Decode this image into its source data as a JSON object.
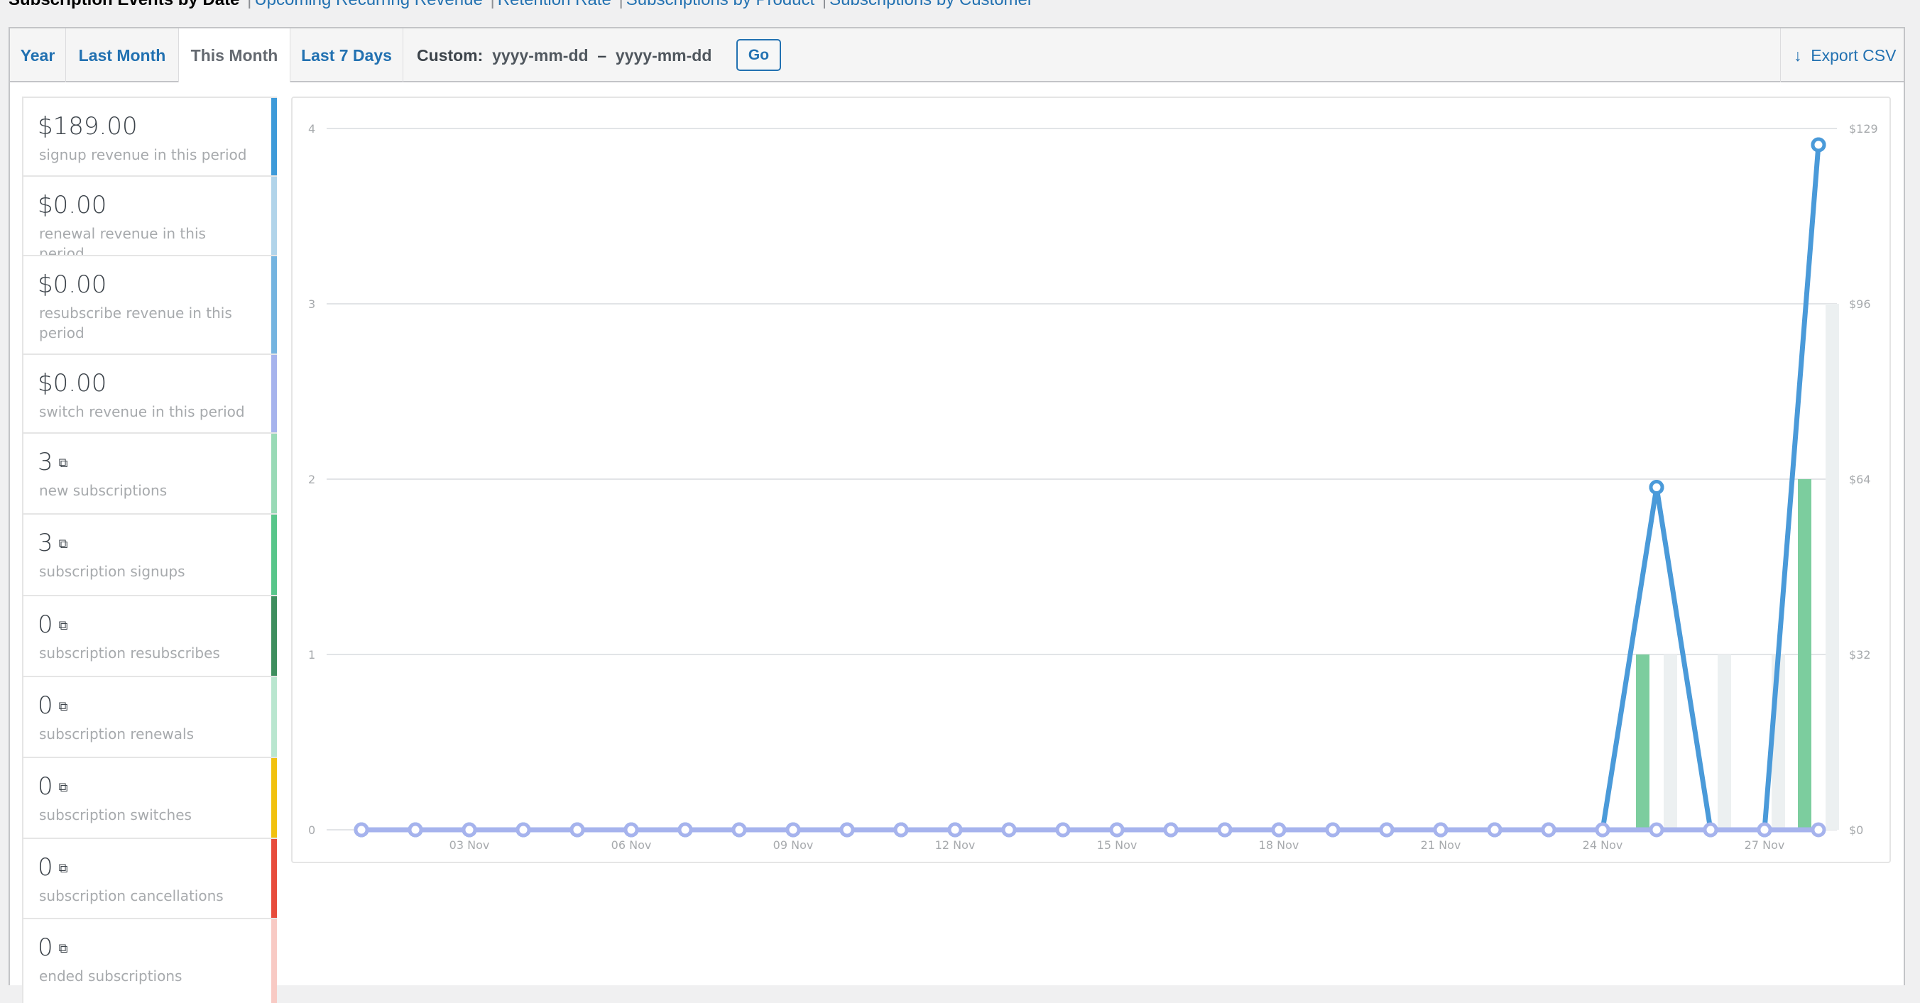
{
  "subnav": {
    "current": "Subscription Events by Date",
    "links": [
      "Upcoming Recurring Revenue",
      "Retention Rate",
      "Subscriptions by Product",
      "Subscriptions by Customer"
    ]
  },
  "tabs": [
    {
      "label": "Year",
      "active": false
    },
    {
      "label": "Last Month",
      "active": false
    },
    {
      "label": "This Month",
      "active": true
    },
    {
      "label": "Last 7 Days",
      "active": false
    }
  ],
  "custom": {
    "label": "Custom:",
    "from_placeholder": "yyyy-mm-dd",
    "dash": "–",
    "to_placeholder": "yyyy-mm-dd",
    "go_label": "Go"
  },
  "export": {
    "icon": "arrow-down-icon",
    "label": "Export CSV"
  },
  "legend": [
    {
      "value": "$189.00",
      "label": "signup revenue in this period",
      "color": "#3d9ad9",
      "link": false
    },
    {
      "value": "$0.00",
      "label": "renewal revenue in this period",
      "color": "#b1d4ea",
      "link": false
    },
    {
      "value": "$0.00",
      "label": "resubscribe revenue in this period",
      "color": "#74b4e0",
      "link": false
    },
    {
      "value": "$0.00",
      "label": "switch revenue in this period",
      "color": "#a6b3ed",
      "link": false
    },
    {
      "value": "3",
      "label": "new subscriptions",
      "color": "#99dab6",
      "link": true
    },
    {
      "value": "3",
      "label": "subscription signups",
      "color": "#58c68a",
      "link": true
    },
    {
      "value": "0",
      "label": "subscription resubscribes",
      "color": "#3e8e5e",
      "link": true
    },
    {
      "value": "0",
      "label": "subscription renewals",
      "color": "#b9e6cf",
      "link": true
    },
    {
      "value": "0",
      "label": "subscription switches",
      "color": "#f1c10f",
      "link": true
    },
    {
      "value": "0",
      "label": "subscription cancellations",
      "color": "#e74c3c",
      "link": true
    },
    {
      "value": "0",
      "label": "ended subscriptions",
      "color": "#f8cac4",
      "link": true
    }
  ],
  "chart_data": {
    "type": "line",
    "x": [
      "01 Nov",
      "02 Nov",
      "03 Nov",
      "04 Nov",
      "05 Nov",
      "06 Nov",
      "07 Nov",
      "08 Nov",
      "09 Nov",
      "10 Nov",
      "11 Nov",
      "12 Nov",
      "13 Nov",
      "14 Nov",
      "15 Nov",
      "16 Nov",
      "17 Nov",
      "18 Nov",
      "19 Nov",
      "20 Nov",
      "21 Nov",
      "22 Nov",
      "23 Nov",
      "24 Nov",
      "25 Nov",
      "26 Nov",
      "27 Nov",
      "28 Nov"
    ],
    "x_tick_labels": [
      "03 Nov",
      "06 Nov",
      "09 Nov",
      "12 Nov",
      "15 Nov",
      "18 Nov",
      "21 Nov",
      "24 Nov",
      "27 Nov"
    ],
    "y_left": {
      "ticks": [
        "0",
        "1",
        "2",
        "3",
        "4"
      ],
      "range": [
        0,
        4
      ]
    },
    "y_right": {
      "ticks": [
        "$0",
        "$32",
        "$64",
        "$96",
        "$129"
      ],
      "range": [
        0,
        129
      ]
    },
    "grid": true,
    "series": [
      {
        "axis": "right",
        "kind": "line",
        "color": "#4a9ad9",
        "values": [
          0,
          0,
          0,
          0,
          0,
          0,
          0,
          0,
          0,
          0,
          0,
          0,
          0,
          0,
          0,
          0,
          0,
          0,
          0,
          0,
          0,
          0,
          0,
          0,
          63,
          0,
          0,
          126
        ]
      },
      {
        "axis": "right",
        "kind": "line",
        "color": "#a6b3ed",
        "values": [
          0,
          0,
          0,
          0,
          0,
          0,
          0,
          0,
          0,
          0,
          0,
          0,
          0,
          0,
          0,
          0,
          0,
          0,
          0,
          0,
          0,
          0,
          0,
          0,
          0,
          0,
          0,
          0
        ]
      },
      {
        "axis": "left",
        "kind": "bar",
        "color": "#7ccd9e",
        "values": [
          0,
          0,
          0,
          0,
          0,
          0,
          0,
          0,
          0,
          0,
          0,
          0,
          0,
          0,
          0,
          0,
          0,
          0,
          0,
          0,
          0,
          0,
          0,
          0,
          1,
          0,
          0,
          2
        ]
      },
      {
        "axis": "left",
        "kind": "bar",
        "color": "#ecf0f1",
        "values": [
          0,
          0,
          0,
          0,
          0,
          0,
          0,
          0,
          0,
          0,
          0,
          0,
          0,
          0,
          0,
          0,
          0,
          0,
          0,
          0,
          0,
          0,
          0,
          0,
          1,
          1,
          1,
          3
        ]
      }
    ]
  }
}
